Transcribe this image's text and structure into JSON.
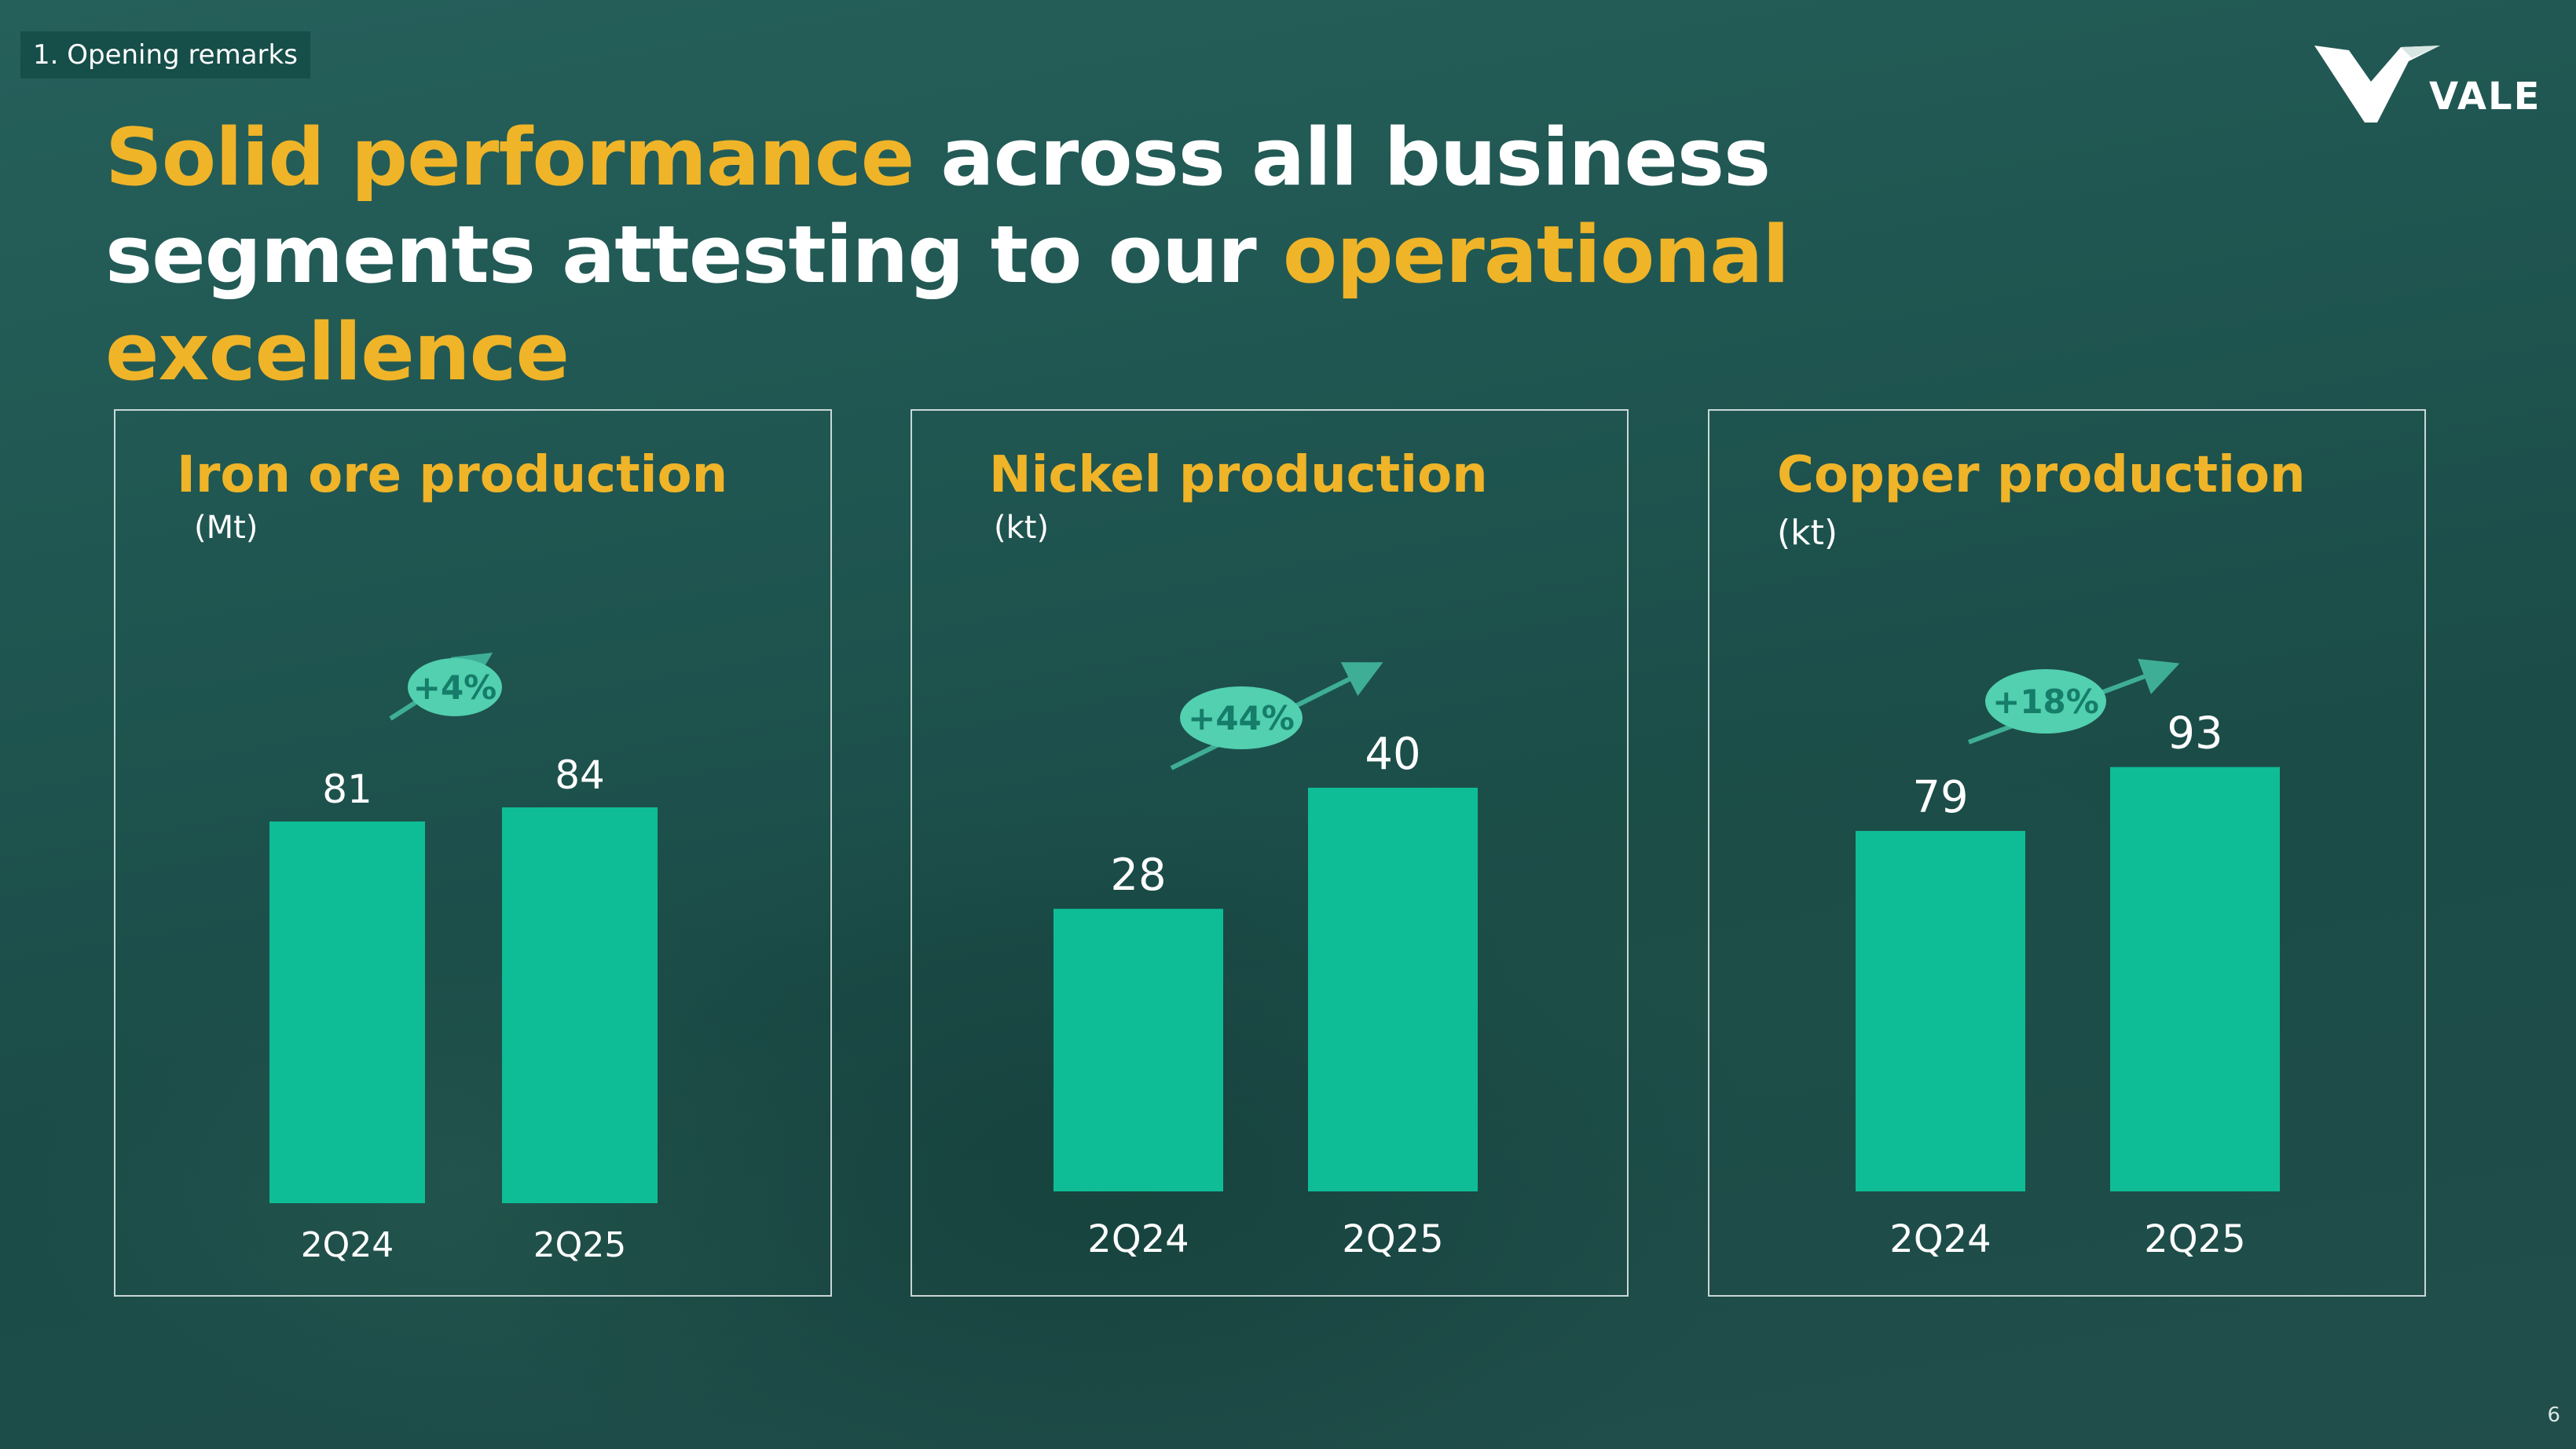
{
  "section_tag": "1. Opening remarks",
  "logo": {
    "text": "VALE"
  },
  "headline": {
    "part1": "Solid performance",
    "part2": " across all business segments attesting to our ",
    "part3": "operational excellence"
  },
  "colors": {
    "accent_yellow": "#f0b428",
    "bar_green": "#0ebd96",
    "badge_green": "#52d0b0",
    "arrow_green": "#3fae96",
    "badge_text": "#157d6a",
    "text_white": "#ffffff"
  },
  "page_number": "6",
  "chart_data": [
    {
      "type": "bar",
      "title": "Iron ore production",
      "unit": "(Mt)",
      "categories": [
        "2Q24",
        "2Q25"
      ],
      "values": [
        81,
        84
      ],
      "change_badge": "+4%",
      "icon": "trend-up-arrow-icon"
    },
    {
      "type": "bar",
      "title": "Nickel production",
      "unit": "(kt)",
      "categories": [
        "2Q24",
        "2Q25"
      ],
      "values": [
        28,
        40
      ],
      "change_badge": "+44%",
      "icon": "trend-up-arrow-icon"
    },
    {
      "type": "bar",
      "title": "Copper production",
      "unit": "(kt)",
      "categories": [
        "2Q24",
        "2Q25"
      ],
      "values": [
        79,
        93
      ],
      "change_badge": "+18%",
      "icon": "trend-up-arrow-icon"
    }
  ]
}
